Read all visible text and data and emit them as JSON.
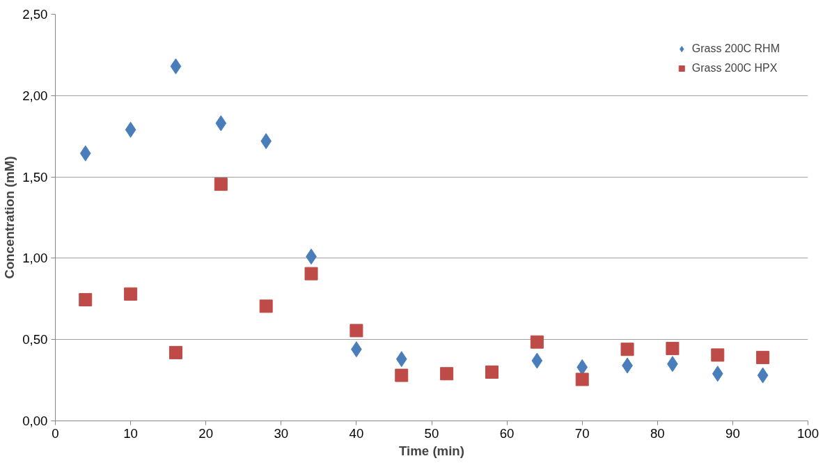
{
  "chart_data": {
    "type": "scatter",
    "xlabel": "Time (min)",
    "ylabel": "Concentration (mM)",
    "x": [
      4,
      10,
      16,
      22,
      28,
      34,
      40,
      46,
      52,
      58,
      64,
      70,
      76,
      82,
      88,
      94
    ],
    "series": [
      {
        "name": "Grass 200C RHM",
        "color": "#4a7ebb",
        "marker": "diamond",
        "values": [
          1.645,
          1.79,
          2.18,
          1.83,
          1.72,
          1.01,
          0.44,
          0.38,
          null,
          null,
          0.37,
          0.33,
          0.34,
          0.35,
          0.29,
          0.28
        ]
      },
      {
        "name": "Grass 200C HPX",
        "color": "#be4b48",
        "marker": "square",
        "values": [
          0.745,
          0.78,
          0.42,
          1.455,
          0.705,
          0.905,
          0.555,
          0.28,
          0.29,
          0.3,
          0.485,
          0.255,
          0.44,
          0.445,
          0.405,
          0.39
        ]
      }
    ],
    "xlim": [
      0,
      100
    ],
    "xticks": [
      0,
      10,
      20,
      30,
      40,
      50,
      60,
      70,
      80,
      90,
      100
    ],
    "ylim": [
      0,
      2.5
    ],
    "yticks": [
      {
        "value": 0,
        "label": "0,00"
      },
      {
        "value": 0.5,
        "label": "0,50"
      },
      {
        "value": 1,
        "label": "1,00"
      },
      {
        "value": 1.5,
        "label": "1,50"
      },
      {
        "value": 2,
        "label": "2,00"
      },
      {
        "value": 2.5,
        "label": "2,50"
      }
    ],
    "grid": "y",
    "legend": "top right"
  }
}
